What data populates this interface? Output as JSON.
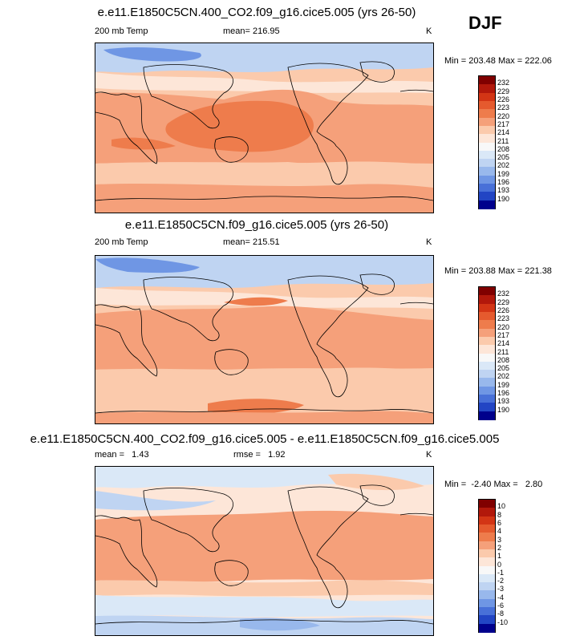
{
  "season": "DJF",
  "panels": [
    {
      "title": "e.e11.E1850C5CN.400_CO2.f09_g16.cice5.005 (yrs 26-50)",
      "left_label": "200 mb Temp",
      "center_label": "mean= 216.95",
      "units": "K",
      "minmax": "Min = 203.48 Max = 222.06",
      "colorbar_ticks": [
        "232",
        "229",
        "226",
        "223",
        "220",
        "217",
        "214",
        "211",
        "208",
        "205",
        "202",
        "199",
        "196",
        "193",
        "190"
      ]
    },
    {
      "title": "e.e11.E1850C5CN.f09_g16.cice5.005 (yrs 26-50)",
      "left_label": "200 mb Temp",
      "center_label": "mean= 215.51",
      "units": "K",
      "minmax": "Min = 203.88 Max = 221.38",
      "colorbar_ticks": [
        "232",
        "229",
        "226",
        "223",
        "220",
        "217",
        "214",
        "211",
        "208",
        "205",
        "202",
        "199",
        "196",
        "193",
        "190"
      ]
    },
    {
      "title": "e.e11.E1850C5CN.400_CO2.f09_g16.cice5.005 - e.e11.E1850C5CN.f09_g16.cice5.005",
      "left_label": "mean =   1.43",
      "center_label": "rmse =   1.92",
      "units": "K",
      "minmax": "Min =  -2.40 Max =   2.80",
      "colorbar_ticks": [
        "10",
        "8",
        "6",
        "4",
        "3",
        "2",
        "1",
        "0",
        "-1",
        "-2",
        "-3",
        "-4",
        "-6",
        "-8",
        "-10"
      ]
    }
  ],
  "colors": {
    "colorbar": [
      "#800000",
      "#b2180b",
      "#d33515",
      "#e55a2e",
      "#ee7c4c",
      "#f5a07a",
      "#fbcaac",
      "#fde6d8",
      "#f8f8f8",
      "#dae8f7",
      "#bfd4f2",
      "#98b8ec",
      "#6f96e4",
      "#4870d8",
      "#2245c4",
      "#00008c"
    ],
    "warm_strong": "#ee7c4c",
    "warm_mid": "#f5a07a",
    "warm_light": "#fbcaac",
    "warm_pale": "#fde6d8",
    "cool_pale": "#dae8f7",
    "cool_light": "#bfd4f2",
    "cool_mid": "#98b8ec",
    "cool_strong": "#6f96e4"
  }
}
